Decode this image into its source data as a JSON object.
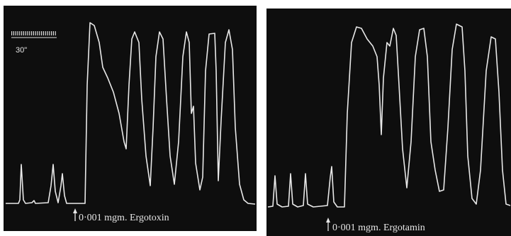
{
  "panels": [
    {
      "scale_label": "30\"",
      "caption": "0·001 mgm. Ergotoxin"
    },
    {
      "caption": "0·001 mgm. Ergotamin"
    }
  ]
}
